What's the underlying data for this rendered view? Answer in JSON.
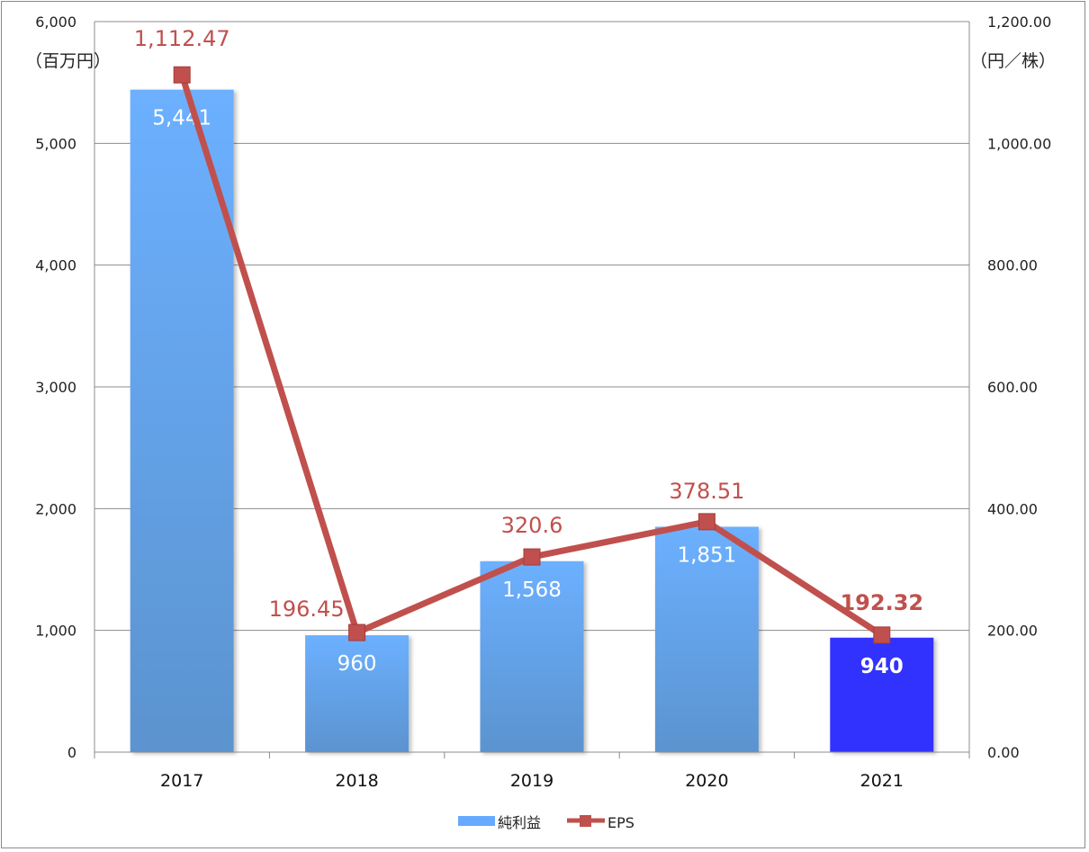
{
  "chart_data": {
    "type": "bar",
    "categories": [
      "2017",
      "2018",
      "2019",
      "2020",
      "2021"
    ],
    "series": [
      {
        "name": "純利益",
        "kind": "bar",
        "axis": "left",
        "values": [
          5441,
          960,
          1568,
          1851,
          940
        ],
        "labels": [
          "5,441",
          "960",
          "1,568",
          "1,851",
          "940"
        ],
        "color": "#66aaff",
        "highlight_color": "#3333ff",
        "highlight_index": 4
      },
      {
        "name": "EPS",
        "kind": "line",
        "axis": "right",
        "values": [
          1112.47,
          196.45,
          320.6,
          378.51,
          192.32
        ],
        "labels": [
          "1,112.47",
          "196.45",
          "320.6",
          "378.51",
          "192.32"
        ],
        "color": "#c0504d"
      }
    ],
    "left_axis": {
      "unit": "（百万円）",
      "min": 0,
      "max": 6000,
      "ticks": [
        "0",
        "1,000",
        "2,000",
        "3,000",
        "4,000",
        "5,000",
        "6,000"
      ]
    },
    "right_axis": {
      "unit": "（円／株）",
      "min": 0,
      "max": 1200,
      "ticks": [
        "0.00",
        "200.00",
        "400.00",
        "600.00",
        "800.00",
        "1,000.00",
        "1,200.00"
      ]
    },
    "grid": true,
    "legend_position": "bottom"
  }
}
